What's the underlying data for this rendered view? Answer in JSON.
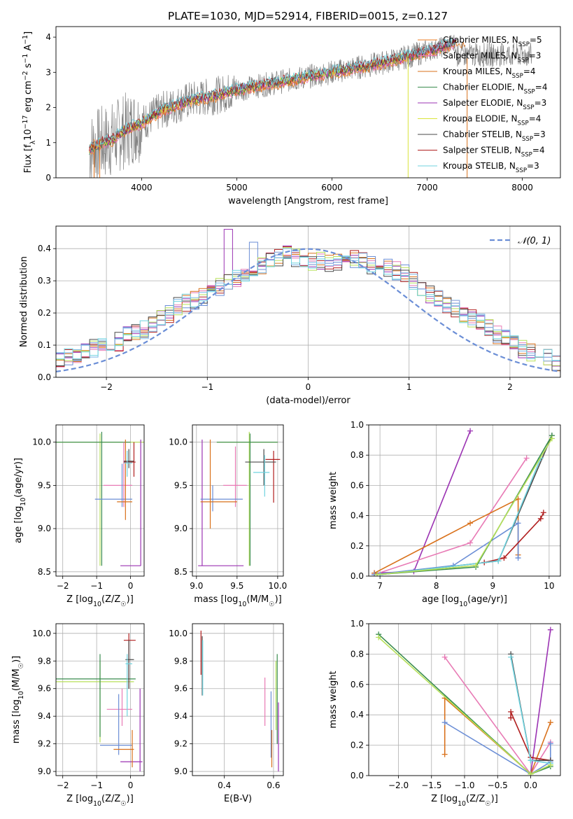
{
  "figure_title": "PLATE=1030, MJD=52914, FIBERID=0015, z=0.127",
  "colors": {
    "data": "#808080",
    "series": [
      "#ee7d24",
      "#e87ab5",
      "#d9711b",
      "#3a8c4f",
      "#9b33b3",
      "#d9e43a",
      "#4a4a4a",
      "#b11f1f",
      "#6fd3df"
    ],
    "resid": [
      "#e87ab5",
      "#9b33b3",
      "#d9711b",
      "#b11f1f",
      "#6b8ed6",
      "#b7e05a",
      "#4a4a4a",
      "#7fb8e8",
      "#6fd3df"
    ],
    "gauss": "#6b8ed6"
  },
  "chart_data": [
    {
      "id": "spectrum",
      "type": "line",
      "xlabel": "wavelength [Angstrom, rest frame]",
      "ylabel": "Flux [f",
      "ylabel_tail": "10",
      "ylabel_unit": "erg cm",
      "ylabel_unit2": "s",
      "ylabel_unit3": "A",
      "xlim": [
        3100,
        8400
      ],
      "ylim": [
        0,
        4.3
      ],
      "xticks": [
        "4000",
        "5000",
        "6000",
        "7000",
        "8000"
      ],
      "xtick_values": [
        4000,
        5000,
        6000,
        7000,
        8000
      ],
      "yticks": [
        "0",
        "1",
        "2",
        "3",
        "4"
      ],
      "ytick_values": [
        0,
        1,
        2,
        3,
        4
      ],
      "legend": [
        {
          "name": "Chabrier MILES, N",
          "sub": "SSP",
          "eq": "=5"
        },
        {
          "name": "Salpeter MILES, N",
          "sub": "SSP",
          "eq": "=3"
        },
        {
          "name": "Kroupa MILES, N",
          "sub": "SSP",
          "eq": "=4"
        },
        {
          "name": "Chabrier ELODIE, N",
          "sub": "SSP",
          "eq": "=4"
        },
        {
          "name": "Salpeter ELODIE, N",
          "sub": "SSP",
          "eq": "=3"
        },
        {
          "name": "Kroupa ELODIE, N",
          "sub": "SSP",
          "eq": "=4"
        },
        {
          "name": "Chabrier STELIB, N",
          "sub": "SSP",
          "eq": "=3"
        },
        {
          "name": "Salpeter STELIB, N",
          "sub": "SSP",
          "eq": "=4"
        },
        {
          "name": "Kroupa STELIB, N",
          "sub": "SSP",
          "eq": "=3"
        }
      ],
      "model_trend": [
        [
          3450,
          0.8
        ],
        [
          3600,
          1.0
        ],
        [
          3700,
          1.1
        ],
        [
          3800,
          1.3
        ],
        [
          3900,
          1.45
        ],
        [
          4000,
          1.55
        ],
        [
          4200,
          1.9
        ],
        [
          4500,
          2.2
        ],
        [
          4800,
          2.35
        ],
        [
          5000,
          2.5
        ],
        [
          5300,
          2.65
        ],
        [
          5600,
          2.8
        ],
        [
          5900,
          2.95
        ],
        [
          6200,
          3.1
        ],
        [
          6500,
          3.25
        ],
        [
          6800,
          3.45
        ],
        [
          7000,
          3.6
        ],
        [
          7200,
          3.75
        ],
        [
          7300,
          3.85
        ]
      ],
      "legend_placement": "top-right"
    },
    {
      "id": "residuals",
      "type": "line",
      "xlabel": "(data-model)/error",
      "ylabel": "Normed distribution",
      "xlim": [
        -2.5,
        2.5
      ],
      "ylim": [
        0,
        0.47
      ],
      "xticks": [
        "−2",
        "−1",
        "0",
        "1",
        "2"
      ],
      "xtick_values": [
        -2,
        -1,
        0,
        1,
        2
      ],
      "yticks": [
        "0.0",
        "0.1",
        "0.2",
        "0.3",
        "0.4"
      ],
      "ytick_values": [
        0,
        0.1,
        0.2,
        0.3,
        0.4
      ],
      "legend": "𝒩(0, 1)",
      "bin_width": 0.1,
      "hist_reference": [
        0.05,
        0.06,
        0.07,
        0.08,
        0.09,
        0.09,
        0.1,
        0.11,
        0.13,
        0.14,
        0.15,
        0.17,
        0.19,
        0.2,
        0.22,
        0.23,
        0.24,
        0.25,
        0.27,
        0.28,
        0.3,
        0.31,
        0.32,
        0.33,
        0.35,
        0.36,
        0.37,
        0.38,
        0.37,
        0.37,
        0.36,
        0.36,
        0.35,
        0.36,
        0.36,
        0.37,
        0.36,
        0.35,
        0.35,
        0.34,
        0.33,
        0.32,
        0.3,
        0.28,
        0.26,
        0.24,
        0.22,
        0.21,
        0.19,
        0.18,
        0.17,
        0.15,
        0.13,
        0.12,
        0.11,
        0.09,
        0.08,
        0.07,
        0.06,
        0.05
      ],
      "grid": true,
      "legend_placement": "top-right"
    },
    {
      "id": "age_vs_Z",
      "type": "scatter",
      "xlabel": "Z [log",
      "xlabel_sub": "10",
      "xlabel_tail": "(Z/Z",
      "xlabel_end": ")]",
      "ylabel": "age  [log",
      "ylabel_sub": "10",
      "ylabel_tail": "(age/yr)]",
      "xlim": [
        -2.2,
        0.4
      ],
      "ylim": [
        8.45,
        10.2
      ],
      "xticks": [
        "−2",
        "−1",
        "0"
      ],
      "xtick_values": [
        -2,
        -1,
        0
      ],
      "yticks": [
        "8.5",
        "9.0",
        "9.5",
        "10.0"
      ],
      "ytick_values": [
        8.5,
        9.0,
        9.5,
        10.0
      ],
      "grid": true
    },
    {
      "id": "age_vs_mass",
      "type": "scatter",
      "xlabel": "mass [log",
      "xlabel_sub": "10",
      "xlabel_tail": "(M/M",
      "xlabel_end": ")]",
      "xlim": [
        8.95,
        10.07
      ],
      "ylim": [
        8.45,
        10.2
      ],
      "xticks": [
        "9.0",
        "9.5",
        "10.0"
      ],
      "xtick_values": [
        9.0,
        9.5,
        10.0
      ],
      "yticks": [
        "8.5",
        "9.0",
        "9.5",
        "10.0"
      ],
      "ytick_values": [
        8.5,
        9.0,
        9.5,
        10.0
      ],
      "grid": true
    },
    {
      "id": "massweight_vs_age",
      "type": "line",
      "xlabel": "age  [log",
      "xlabel_sub": "10",
      "xlabel_tail": "(age/yr)]",
      "ylabel": "mass weight",
      "xlim": [
        6.8,
        10.2
      ],
      "ylim": [
        0,
        1
      ],
      "xticks": [
        "7",
        "8",
        "9",
        "10"
      ],
      "xtick_values": [
        7,
        8,
        9,
        10
      ],
      "yticks": [
        "0.0",
        "0.2",
        "0.4",
        "0.6",
        "0.8",
        "1.0"
      ],
      "ytick_values": [
        0,
        0.2,
        0.4,
        0.6,
        0.8,
        1.0
      ],
      "grid": true,
      "series": [
        {
          "color": "#9b33b3",
          "x": [
            6.9,
            7.6,
            8.6
          ],
          "y": [
            0.02,
            0.03,
            0.96
          ]
        },
        {
          "color": "#e87ab5",
          "x": [
            6.9,
            8.6,
            9.6
          ],
          "y": [
            0.01,
            0.22,
            0.78
          ]
        },
        {
          "color": "#d9711b",
          "x": [
            6.9,
            8.6,
            9.45,
            9.45
          ],
          "y": [
            0.02,
            0.35,
            0.51,
            0.14
          ]
        },
        {
          "color": "#6b8ed6",
          "x": [
            6.9,
            8.3,
            9.45,
            9.45
          ],
          "y": [
            0.01,
            0.07,
            0.35,
            0.12
          ]
        },
        {
          "color": "#b11f1f",
          "x": [
            8.85,
            9.2,
            9.85,
            9.9
          ],
          "y": [
            0.09,
            0.12,
            0.38,
            0.42
          ]
        },
        {
          "color": "#4a4a4a",
          "x": [
            7.0,
            9.1,
            10.05
          ],
          "y": [
            0.01,
            0.1,
            0.93
          ]
        },
        {
          "color": "#6fd3df",
          "x": [
            7.0,
            9.1,
            9.85
          ],
          "y": [
            0.01,
            0.1,
            0.78
          ]
        },
        {
          "color": "#3a8c4f",
          "x": [
            6.95,
            8.7,
            10.05
          ],
          "y": [
            0.01,
            0.06,
            0.93
          ]
        },
        {
          "color": "#b7e05a",
          "x": [
            6.95,
            8.7,
            10.05
          ],
          "y": [
            0.01,
            0.07,
            0.91
          ]
        }
      ]
    },
    {
      "id": "mass_vs_Z",
      "type": "scatter",
      "xlabel": "Z [log",
      "xlabel_sub": "10",
      "xlabel_tail": "(Z/Z",
      "xlabel_end": ")]",
      "ylabel": "mass [log",
      "ylabel_sub": "10",
      "ylabel_tail": "(M/M",
      "ylabel_end": ")]",
      "xlim": [
        -2.2,
        0.4
      ],
      "ylim": [
        8.97,
        10.07
      ],
      "xticks": [
        "−2",
        "−1",
        "0"
      ],
      "xtick_values": [
        -2,
        -1,
        0
      ],
      "yticks": [
        "9.0",
        "9.2",
        "9.4",
        "9.6",
        "9.8",
        "10.0"
      ],
      "ytick_values": [
        9.0,
        9.2,
        9.4,
        9.6,
        9.8,
        10.0
      ],
      "grid": true
    },
    {
      "id": "mass_vs_EBV",
      "type": "scatter",
      "xlabel": "E(B-V)",
      "xlim": [
        0.27,
        0.64
      ],
      "ylim": [
        8.97,
        10.07
      ],
      "xticks": [
        "0.4",
        "0.6"
      ],
      "xtick_values": [
        0.4,
        0.6
      ],
      "yticks": [
        "9.0",
        "9.2",
        "9.4",
        "9.6",
        "9.8",
        "10.0"
      ],
      "ytick_values": [
        9.0,
        9.2,
        9.4,
        9.6,
        9.8,
        10.0
      ],
      "grid": true
    },
    {
      "id": "massweight_vs_Z",
      "type": "line",
      "xlabel": "Z [log",
      "xlabel_sub": "10",
      "xlabel_tail": "(Z/Z",
      "xlabel_end": ")]",
      "ylabel": "mass weight",
      "xlim": [
        -2.45,
        0.45
      ],
      "ylim": [
        0,
        1
      ],
      "xticks": [
        "−2.0",
        "−1.5",
        "−1.0",
        "−0.5",
        "0.0"
      ],
      "xtick_values": [
        -2.0,
        -1.5,
        -1.0,
        -0.5,
        0.0
      ],
      "yticks": [
        "0.0",
        "0.2",
        "0.4",
        "0.6",
        "0.8",
        "1.0"
      ],
      "ytick_values": [
        0,
        0.2,
        0.4,
        0.6,
        0.8,
        1.0
      ],
      "grid": true,
      "series": [
        {
          "color": "#9b33b3",
          "x": [
            0,
            0.3
          ],
          "y": [
            0.01,
            0.96
          ]
        },
        {
          "color": "#e87ab5",
          "x": [
            -1.3,
            0,
            0.3
          ],
          "y": [
            0.78,
            0.01,
            0.22
          ]
        },
        {
          "color": "#d9711b",
          "x": [
            -1.3,
            -1.3,
            0,
            0.3
          ],
          "y": [
            0.14,
            0.51,
            0.01,
            0.35
          ]
        },
        {
          "color": "#6b8ed6",
          "x": [
            -1.3,
            0,
            0.3,
            0.3
          ],
          "y": [
            0.35,
            0.01,
            0.09,
            0.21
          ]
        },
        {
          "color": "#b11f1f",
          "x": [
            -0.3,
            -0.3,
            0,
            0.3
          ],
          "y": [
            0.38,
            0.42,
            0.12,
            0.1
          ]
        },
        {
          "color": "#4a4a4a",
          "x": [
            -0.3,
            0,
            0.3
          ],
          "y": [
            0.8,
            0.1,
            0.1
          ]
        },
        {
          "color": "#6fd3df",
          "x": [
            -0.3,
            0,
            0.3
          ],
          "y": [
            0.78,
            0.1,
            0.08
          ]
        },
        {
          "color": "#3a8c4f",
          "x": [
            -2.3,
            0,
            0.3
          ],
          "y": [
            0.93,
            0.01,
            0.06
          ]
        },
        {
          "color": "#b7e05a",
          "x": [
            -2.3,
            0,
            0.3
          ],
          "y": [
            0.91,
            0.01,
            0.07
          ]
        }
      ]
    }
  ],
  "errbars": {
    "age_vs_Z": [
      {
        "c": "#b7e05a",
        "x": -0.9,
        "xl": -2.2,
        "xr": 0.4,
        "y": 10.0,
        "yl": 8.57,
        "yh": 10.1
      },
      {
        "c": "#3a8c4f",
        "x": -0.85,
        "xl": -2.2,
        "xr": 0.0,
        "y": 10.0,
        "yl": 8.57,
        "yh": 10.12
      },
      {
        "c": "#9b33b3",
        "x": 0.3,
        "xl": -0.3,
        "xr": 0.3,
        "y": 8.57,
        "yl": 8.57,
        "yh": 10.03
      },
      {
        "c": "#e87ab5",
        "x": -0.2,
        "xl": -0.8,
        "xr": 0.05,
        "y": 9.5,
        "yl": 9.25,
        "yh": 10.0
      },
      {
        "c": "#6b8ed6",
        "x": -0.25,
        "xl": -1.05,
        "xr": 0.05,
        "y": 9.34,
        "yl": 9.25,
        "yh": 9.75
      },
      {
        "c": "#d9711b",
        "x": -0.15,
        "xl": -0.4,
        "xr": 0.05,
        "y": 9.31,
        "yl": 9.1,
        "yh": 10.03
      },
      {
        "c": "#b11f1f",
        "x": 0.1,
        "xl": -0.2,
        "xr": 0.15,
        "y": 9.77,
        "yl": 9.6,
        "yh": 10.0
      },
      {
        "c": "#4a4a4a",
        "x": -0.05,
        "xl": -0.2,
        "xr": 0.1,
        "y": 9.78,
        "yl": 9.7,
        "yh": 9.92
      },
      {
        "c": "#6fd3df",
        "x": -0.1,
        "xl": -0.2,
        "xr": 0.05,
        "y": 9.76,
        "yl": 9.6,
        "yh": 9.9
      }
    ],
    "age_vs_mass": [
      {
        "c": "#b7e05a",
        "x": 9.65,
        "xl": 9.25,
        "xr": 10.0,
        "y": 10.0,
        "yl": 8.57,
        "yh": 10.12
      },
      {
        "c": "#3a8c4f",
        "x": 9.66,
        "xl": 9.25,
        "xr": 10.0,
        "y": 10.0,
        "yl": 8.57,
        "yh": 10.1
      },
      {
        "c": "#9b33b3",
        "x": 9.07,
        "xl": 9.02,
        "xr": 9.58,
        "y": 8.57,
        "yl": 8.57,
        "yh": 10.03
      },
      {
        "c": "#e87ab5",
        "x": 9.48,
        "xl": 9.33,
        "xr": 9.62,
        "y": 9.5,
        "yl": 9.25,
        "yh": 9.95
      },
      {
        "c": "#6b8ed6",
        "x": 9.2,
        "xl": 9.05,
        "xr": 9.57,
        "y": 9.34,
        "yl": 9.2,
        "yh": 9.5
      },
      {
        "c": "#d9711b",
        "x": 9.17,
        "xl": 9.05,
        "xr": 9.5,
        "y": 9.31,
        "yl": 9.0,
        "yh": 10.03
      },
      {
        "c": "#b11f1f",
        "x": 9.95,
        "xl": 9.85,
        "xr": 10.03,
        "y": 9.8,
        "yl": 9.3,
        "yh": 9.9
      },
      {
        "c": "#4a4a4a",
        "x": 9.83,
        "xl": 9.6,
        "xr": 9.98,
        "y": 9.77,
        "yl": 9.5,
        "yh": 9.92
      },
      {
        "c": "#6fd3df",
        "x": 9.84,
        "xl": 9.7,
        "xr": 9.9,
        "y": 9.65,
        "yl": 9.37,
        "yh": 9.85
      }
    ],
    "mass_vs_Z": [
      {
        "c": "#b7e05a",
        "x": -0.9,
        "xl": -2.2,
        "xr": 0.1,
        "y": 9.65,
        "yl": 9.21,
        "yh": 9.8
      },
      {
        "c": "#3a8c4f",
        "x": -0.9,
        "xl": -2.2,
        "xr": 0.15,
        "y": 9.67,
        "yl": 9.25,
        "yh": 9.85
      },
      {
        "c": "#9b33b3",
        "x": 0.28,
        "xl": -0.3,
        "xr": 0.35,
        "y": 9.07,
        "yl": 9.0,
        "yh": 9.6
      },
      {
        "c": "#e87ab5",
        "x": -0.25,
        "xl": -0.7,
        "xr": 0.05,
        "y": 9.45,
        "yl": 9.33,
        "yh": 9.6
      },
      {
        "c": "#6b8ed6",
        "x": -0.35,
        "xl": -0.9,
        "xr": 0.05,
        "y": 9.19,
        "yl": 9.12,
        "yh": 9.56
      },
      {
        "c": "#d9711b",
        "x": 0.05,
        "xl": -0.5,
        "xr": 0.1,
        "y": 9.16,
        "yl": 9.03,
        "yh": 9.3
      },
      {
        "c": "#b11f1f",
        "x": -0.05,
        "xl": -0.2,
        "xr": 0.15,
        "y": 9.95,
        "yl": 9.6,
        "yh": 10.0
      },
      {
        "c": "#4a4a4a",
        "x": -0.05,
        "xl": -0.15,
        "xr": 0.1,
        "y": 9.81,
        "yl": 9.6,
        "yh": 9.95
      },
      {
        "c": "#6fd3df",
        "x": -0.1,
        "xl": -0.15,
        "xr": 0.05,
        "y": 9.78,
        "yl": 9.4,
        "yh": 9.85
      }
    ],
    "mass_vs_EBV": [
      {
        "c": "#b11f1f",
        "x": 0.305,
        "xl": 0.305,
        "xr": 0.305,
        "y": 9.95,
        "yl": 9.7,
        "yh": 10.02
      },
      {
        "c": "#4a4a4a",
        "x": 0.31,
        "xl": 0.31,
        "xr": 0.31,
        "y": 9.8,
        "yl": 9.55,
        "yh": 9.98
      },
      {
        "c": "#6fd3df",
        "x": 0.312,
        "xl": 0.312,
        "xr": 0.312,
        "y": 9.75,
        "yl": 9.55,
        "yh": 9.95
      },
      {
        "c": "#e87ab5",
        "x": 0.565,
        "xl": 0.565,
        "xr": 0.565,
        "y": 9.45,
        "yl": 9.33,
        "yh": 9.68
      },
      {
        "c": "#6b8ed6",
        "x": 0.59,
        "xl": 0.59,
        "xr": 0.59,
        "y": 9.3,
        "yl": 9.1,
        "yh": 9.58
      },
      {
        "c": "#d9711b",
        "x": 0.593,
        "xl": 0.593,
        "xr": 0.593,
        "y": 9.1,
        "yl": 9.03,
        "yh": 9.3
      },
      {
        "c": "#b7e05a",
        "x": 0.61,
        "xl": 0.61,
        "xr": 0.61,
        "y": 9.6,
        "yl": 9.3,
        "yh": 9.8
      },
      {
        "c": "#3a8c4f",
        "x": 0.615,
        "xl": 0.615,
        "xr": 0.615,
        "y": 9.6,
        "yl": 9.2,
        "yh": 9.85
      },
      {
        "c": "#9b33b3",
        "x": 0.62,
        "xl": 0.62,
        "xr": 0.62,
        "y": 9.1,
        "yl": 9.0,
        "yh": 9.5
      }
    ]
  }
}
